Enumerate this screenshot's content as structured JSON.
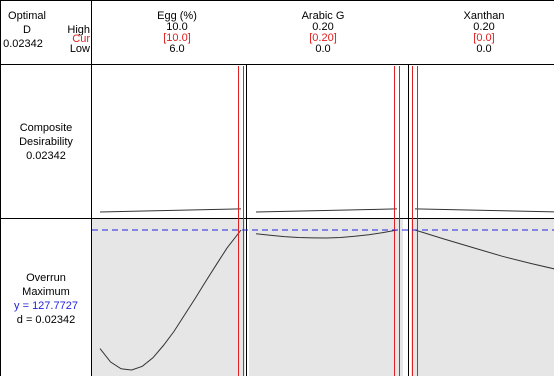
{
  "header": {
    "optimal_label": "Optimal",
    "d_label": "D",
    "d_value": "0.02342",
    "high_label": "High",
    "cur_label": "Cur",
    "low_label": "Low"
  },
  "rows": {
    "composite": {
      "line1": "Composite",
      "line2": "Desirability",
      "value": "0.02342"
    },
    "overrun": {
      "line1": "Overrun",
      "line2": "Maximum",
      "y_text": "y = 127.7727",
      "d_text": "d = 0.02342"
    }
  },
  "colors": {
    "current_marker": "#e02020",
    "optimal_reference": "#2222dd",
    "response_panel_fill": "#e6e6e6",
    "curve": "#333333"
  },
  "chart_data": {
    "type": "line",
    "title": "",
    "optimal_y": 127.7727,
    "factors": [
      {
        "name": "Egg (%)",
        "high": "10.0",
        "cur": "[10.0]",
        "low": "6.0",
        "range": [
          6.0,
          10.0
        ],
        "current": 10.0,
        "desirability": {
          "x": [
            6.0,
            10.0
          ],
          "y": [
            0.0,
            0.02342
          ]
        },
        "response": {
          "x": [
            6.0,
            6.3,
            6.6,
            6.9,
            7.2,
            7.5,
            7.8,
            8.1,
            8.4,
            8.7,
            9.0,
            9.3,
            9.6,
            10.0
          ],
          "y": [
            108.4,
            106.2,
            105.1,
            104.9,
            105.5,
            106.9,
            108.9,
            111.2,
            113.9,
            116.6,
            119.4,
            122.1,
            124.8,
            127.77
          ]
        }
      },
      {
        "name": "Arabic G",
        "high": "0.20",
        "cur": "[0.20]",
        "low": "0.0",
        "range": [
          0.0,
          0.2
        ],
        "current": 0.2,
        "desirability": {
          "x": [
            0.0,
            0.2
          ],
          "y": [
            0.0,
            0.02342
          ]
        },
        "response": {
          "x": [
            0.0,
            0.02,
            0.04,
            0.06,
            0.08,
            0.1,
            0.12,
            0.14,
            0.16,
            0.18,
            0.2
          ],
          "y": [
            127.15,
            126.9,
            126.7,
            126.55,
            126.48,
            126.47,
            126.55,
            126.75,
            127.0,
            127.35,
            127.77
          ]
        }
      },
      {
        "name": "Xanthan",
        "high": "0.20",
        "cur": "[0.0]",
        "low": "0.0",
        "range": [
          0.0,
          0.2
        ],
        "current": 0.0,
        "desirability": {
          "x": [
            0.0,
            0.2
          ],
          "y": [
            0.02342,
            0.0
          ]
        },
        "response": {
          "x": [
            0.0,
            0.04,
            0.08,
            0.12,
            0.16,
            0.2
          ],
          "y": [
            127.77,
            126.3,
            124.9,
            123.5,
            122.3,
            121.2
          ]
        }
      }
    ]
  }
}
